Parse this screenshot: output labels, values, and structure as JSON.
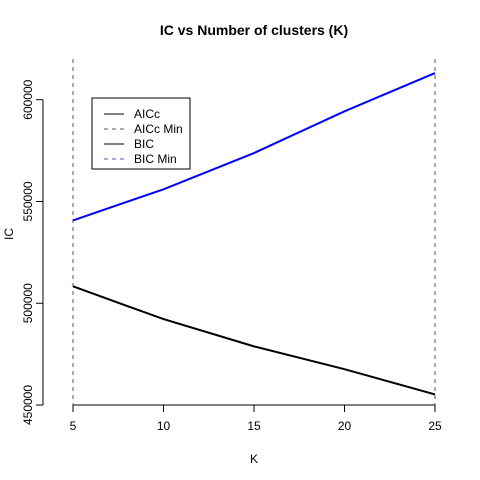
{
  "chart_data": {
    "type": "line",
    "title": "IC vs Number of clusters (K)",
    "xlabel": "K",
    "ylabel": "IC",
    "xlim": [
      5,
      25
    ],
    "ylim": [
      450000,
      620000
    ],
    "x_ticks": [
      5,
      10,
      15,
      20,
      25
    ],
    "x_tick_labels": [
      "5",
      "10",
      "15",
      "20",
      "25"
    ],
    "y_ticks": [
      450000,
      500000,
      550000,
      600000
    ],
    "y_tick_labels": [
      "450000",
      "500000",
      "550000",
      "600000"
    ],
    "x": [
      5,
      10,
      15,
      20,
      25
    ],
    "series": [
      {
        "name": "AICc",
        "color": "#000000",
        "values": [
          508300,
          492200,
          478800,
          467600,
          455200
        ]
      },
      {
        "name": "BIC",
        "color": "#0000ff",
        "values": [
          540700,
          556000,
          573800,
          594300,
          613100
        ]
      }
    ],
    "vlines": [
      {
        "name": "AICc Min",
        "x": 25,
        "color": "#555555",
        "dash": "dashed"
      },
      {
        "name": "BIC Min",
        "x": 5,
        "color": "#7e3f9c",
        "dash": "dashed"
      }
    ],
    "legend": {
      "placement": "top-left",
      "entries": [
        {
          "label": "AICc",
          "color": "#000000",
          "dash": "solid"
        },
        {
          "label": "AICc Min",
          "color": "#555555",
          "dash": "dashed"
        },
        {
          "label": "BIC",
          "color": "#000000",
          "dash": "solid"
        },
        {
          "label": "BIC Min",
          "color": "#7e3fbf",
          "dash": "dashed"
        }
      ]
    },
    "grid": false
  }
}
